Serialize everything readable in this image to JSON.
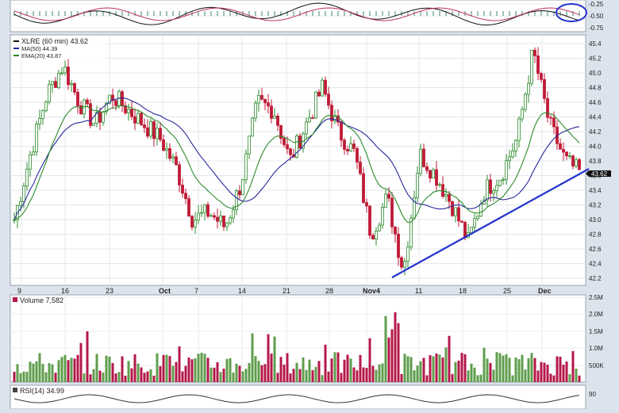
{
  "macd_panel": {
    "ticks": [
      "-0.25",
      "-0.50",
      "-0.75"
    ]
  },
  "price_panel": {
    "legend": [
      {
        "label": "XLRE (60 min) 43.62",
        "color": "#111111"
      },
      {
        "label": "MA(50) 44.39",
        "color": "#27279a"
      },
      {
        "label": "EMA(20) 43.87",
        "color": "#2b8a2b"
      }
    ],
    "x_ticks": [
      "9",
      "16",
      "23",
      "Oct",
      "7",
      "14",
      "21",
      "28",
      "Nov4",
      "11",
      "18",
      "25",
      "Dec"
    ],
    "y_ticks": [
      "42.2",
      "42.4",
      "42.6",
      "42.8",
      "43.0",
      "43.2",
      "43.4",
      "43.6",
      "43.8",
      "44.0",
      "44.2",
      "44.4",
      "44.6",
      "44.8",
      "45.0",
      "45.2",
      "45.4"
    ],
    "last_price": "43.62"
  },
  "volume_panel": {
    "label": "Volume 7,582",
    "y_ticks": [
      "500K",
      "1.0M",
      "1.5M",
      "2.0M",
      "2.5M"
    ]
  },
  "rsi_panel": {
    "label": "RSI(14) 34.99",
    "y_tick": "90"
  },
  "colors": {
    "background": "#dce3ec",
    "panel": "#ffffff",
    "up_candle": "#2e8b2e",
    "down_candle": "#c01a36",
    "up_volume": "#5f9e4c",
    "down_volume": "#b5184a",
    "ma50": "#27279a",
    "ema20": "#2b8a2b",
    "trendline": "#2233cc"
  },
  "chart_data": [
    {
      "type": "candlestick",
      "title": "XLRE (60 min)",
      "ylim": [
        42.2,
        45.5
      ],
      "x_categories": [
        "9",
        "16",
        "23",
        "Oct",
        "7",
        "14",
        "21",
        "28",
        "Nov4",
        "11",
        "18",
        "25",
        "Dec"
      ],
      "series": [
        {
          "name": "XLRE",
          "kind": "close_path",
          "points": [
            [
              "9",
              43.0
            ],
            [
              "",
              43.9
            ],
            [
              "",
              44.7
            ],
            [
              "16",
              45.1
            ],
            [
              "",
              44.6
            ],
            [
              "",
              44.3
            ],
            [
              "23",
              44.7
            ],
            [
              "",
              44.5
            ],
            [
              "",
              44.3
            ],
            [
              "Oct",
              44.1
            ],
            [
              "",
              43.7
            ],
            [
              "7",
              43.0
            ],
            [
              "",
              43.1
            ],
            [
              "",
              42.9
            ],
            [
              "14",
              43.5
            ],
            [
              "",
              44.6
            ],
            [
              "21",
              44.5
            ],
            [
              "",
              43.8
            ],
            [
              "",
              44.3
            ],
            [
              "28",
              44.8
            ],
            [
              "",
              44.2
            ],
            [
              "",
              43.9
            ],
            [
              "Nov4",
              42.8
            ],
            [
              "",
              43.3
            ],
            [
              "",
              42.3
            ],
            [
              "11",
              43.9
            ],
            [
              "",
              43.6
            ],
            [
              "",
              43.2
            ],
            [
              "18",
              42.7
            ],
            [
              "",
              43.4
            ],
            [
              "",
              43.6
            ],
            [
              "25",
              44.1
            ],
            [
              "",
              45.3
            ],
            [
              "Dec",
              44.3
            ],
            [
              "",
              43.8
            ],
            [
              "",
              43.62
            ]
          ]
        },
        {
          "name": "MA(50)",
          "values_last": 44.39
        },
        {
          "name": "EMA(20)",
          "values_last": 43.87
        }
      ],
      "annotations": [
        {
          "type": "trendline",
          "from": [
            "Nov4",
            42.22
          ],
          "to": [
            "Dec",
            43.65
          ]
        }
      ]
    },
    {
      "type": "bar",
      "title": "Volume 7,582",
      "ylim": [
        0,
        2500000
      ],
      "notes": "hourly volume bars, majority 200K-800K, spikes near 2.2M around Nov4"
    },
    {
      "type": "line",
      "title": "RSI(14) 34.99",
      "ylim": [
        0,
        100
      ]
    }
  ]
}
